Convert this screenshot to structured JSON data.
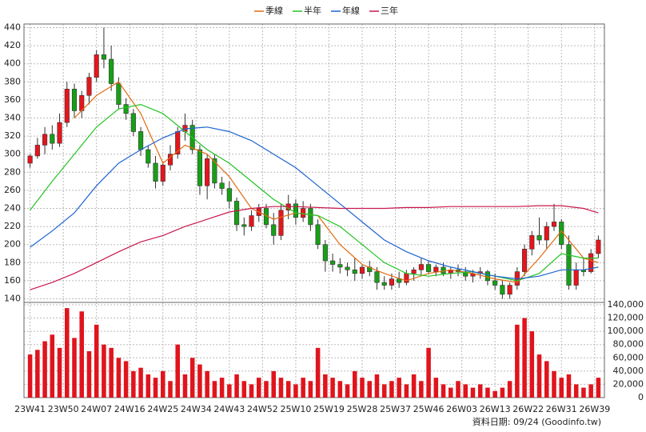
{
  "chart_data": {
    "type": "candlestick",
    "x": [
      0,
      2,
      4,
      6,
      8,
      10,
      12,
      14,
      16,
      18,
      20,
      22,
      24,
      26,
      28,
      30,
      32,
      34,
      36,
      38,
      40,
      42,
      44,
      46,
      48,
      50,
      52,
      54,
      56,
      58,
      60,
      62,
      64,
      66,
      68,
      70,
      72,
      74,
      76,
      78,
      80,
      82,
      84,
      86,
      88,
      90,
      92,
      94,
      96,
      98,
      100,
      102,
      104,
      106,
      108,
      110,
      112,
      114,
      116,
      118,
      120,
      122,
      124,
      126,
      128,
      130,
      132,
      134,
      136,
      138,
      140,
      142,
      144,
      146,
      148,
      150,
      152,
      154
    ],
    "open": [
      290,
      298,
      310,
      322,
      312,
      335,
      372,
      348,
      365,
      385,
      410,
      405,
      378,
      355,
      345,
      325,
      305,
      290,
      270,
      288,
      300,
      325,
      332,
      305,
      265,
      295,
      268,
      262,
      248,
      222,
      220,
      232,
      240,
      222,
      210,
      238,
      245,
      230,
      240,
      222,
      200,
      182,
      178,
      175,
      172,
      168,
      175,
      170,
      158,
      155,
      162,
      158,
      168,
      172,
      178,
      170,
      175,
      168,
      172,
      170,
      165,
      168,
      170,
      160,
      155,
      145,
      155,
      170,
      195,
      210,
      205,
      220,
      225,
      200,
      155,
      172,
      170,
      190
    ],
    "high": [
      300,
      318,
      330,
      332,
      345,
      380,
      378,
      370,
      390,
      415,
      440,
      420,
      385,
      362,
      350,
      330,
      310,
      298,
      292,
      310,
      330,
      345,
      338,
      310,
      300,
      300,
      275,
      270,
      252,
      230,
      238,
      245,
      245,
      235,
      245,
      255,
      250,
      248,
      245,
      228,
      205,
      190,
      185,
      180,
      185,
      178,
      182,
      175,
      165,
      168,
      170,
      172,
      175,
      185,
      182,
      178,
      180,
      175,
      178,
      175,
      172,
      175,
      172,
      168,
      160,
      158,
      175,
      200,
      215,
      230,
      225,
      245,
      228,
      210,
      180,
      185,
      195,
      210
    ],
    "low": [
      285,
      295,
      300,
      305,
      308,
      330,
      340,
      340,
      355,
      380,
      395,
      370,
      350,
      338,
      320,
      298,
      285,
      262,
      265,
      282,
      295,
      315,
      300,
      255,
      250,
      262,
      255,
      240,
      215,
      210,
      215,
      225,
      218,
      200,
      205,
      228,
      222,
      225,
      215,
      195,
      170,
      170,
      168,
      165,
      160,
      162,
      165,
      150,
      150,
      150,
      152,
      155,
      160,
      165,
      168,
      165,
      165,
      162,
      165,
      160,
      158,
      162,
      155,
      150,
      140,
      140,
      150,
      165,
      188,
      200,
      195,
      215,
      195,
      150,
      150,
      165,
      168,
      185
    ],
    "close": [
      298,
      310,
      322,
      312,
      335,
      372,
      348,
      365,
      385,
      410,
      405,
      378,
      355,
      345,
      325,
      305,
      290,
      270,
      288,
      300,
      325,
      332,
      305,
      265,
      295,
      268,
      262,
      248,
      222,
      220,
      232,
      240,
      222,
      210,
      238,
      245,
      230,
      240,
      222,
      200,
      182,
      178,
      175,
      172,
      168,
      175,
      170,
      158,
      155,
      162,
      158,
      168,
      172,
      178,
      170,
      175,
      168,
      172,
      170,
      165,
      168,
      170,
      160,
      155,
      145,
      155,
      170,
      195,
      210,
      205,
      220,
      225,
      200,
      155,
      172,
      170,
      190,
      205
    ],
    "volume": [
      65000,
      72000,
      85000,
      95000,
      75000,
      135000,
      90000,
      130000,
      70000,
      110000,
      80000,
      75000,
      60000,
      55000,
      40000,
      45000,
      35000,
      30000,
      40000,
      25000,
      80000,
      35000,
      60000,
      50000,
      40000,
      25000,
      30000,
      20000,
      35000,
      25000,
      20000,
      30000,
      25000,
      40000,
      30000,
      25000,
      20000,
      30000,
      25000,
      75000,
      35000,
      30000,
      25000,
      20000,
      40000,
      30000,
      25000,
      35000,
      20000,
      25000,
      30000,
      20000,
      35000,
      25000,
      75000,
      30000,
      20000,
      15000,
      25000,
      20000,
      15000,
      20000,
      15000,
      10000,
      15000,
      25000,
      110000,
      120000,
      100000,
      65000,
      55000,
      40000,
      30000,
      35000,
      20000,
      15000,
      20000,
      30000
    ],
    "up_color": "#e8141c",
    "down_color": "#16a016",
    "volume_color": "#e0141c",
    "lines": {
      "x": [
        0,
        6,
        12,
        18,
        24,
        30,
        36,
        42,
        48,
        54,
        60,
        66,
        72,
        78,
        84,
        90,
        96,
        102,
        108,
        114,
        120,
        126,
        132,
        138,
        144,
        150,
        154
      ],
      "series": [
        {
          "name": "季線",
          "color": "#e06c10",
          "values": [
            null,
            null,
            340,
            365,
            380,
            345,
            290,
            310,
            300,
            275,
            240,
            228,
            235,
            232,
            200,
            178,
            168,
            160,
            168,
            172,
            168,
            162,
            158,
            185,
            215,
            185,
            180
          ]
        },
        {
          "name": "半年",
          "color": "#22c422",
          "values": [
            238,
            270,
            300,
            330,
            350,
            355,
            345,
            325,
            305,
            290,
            270,
            250,
            235,
            232,
            220,
            200,
            180,
            168,
            165,
            168,
            170,
            165,
            160,
            168,
            190,
            185,
            185
          ]
        },
        {
          "name": "年線",
          "color": "#1e64d0",
          "values": [
            197,
            215,
            235,
            265,
            290,
            305,
            318,
            328,
            330,
            325,
            315,
            300,
            285,
            265,
            245,
            225,
            205,
            192,
            182,
            175,
            170,
            165,
            162,
            165,
            172,
            172,
            175
          ]
        },
        {
          "name": "三年",
          "color": "#c8184c",
          "values": [
            150,
            158,
            168,
            180,
            192,
            203,
            210,
            220,
            228,
            236,
            240,
            242,
            242,
            241,
            240,
            240,
            240,
            241,
            241,
            242,
            242,
            242,
            242,
            243,
            243,
            240,
            235
          ]
        }
      ]
    },
    "xlim": [
      -1,
      155
    ],
    "xticks": [
      {
        "value": 0,
        "label": "23W41"
      },
      {
        "value": 9,
        "label": "23W50"
      },
      {
        "value": 18,
        "label": "24W07"
      },
      {
        "value": 27,
        "label": "24W16"
      },
      {
        "value": 36,
        "label": "24W25"
      },
      {
        "value": 45,
        "label": "24W34"
      },
      {
        "value": 54,
        "label": "24W43"
      },
      {
        "value": 63,
        "label": "24W52"
      },
      {
        "value": 72,
        "label": "25W10"
      },
      {
        "value": 81,
        "label": "25W19"
      },
      {
        "value": 90,
        "label": "25W28"
      },
      {
        "value": 99,
        "label": "25W37"
      },
      {
        "value": 108,
        "label": "25W46"
      },
      {
        "value": 117,
        "label": "26W03"
      },
      {
        "value": 126,
        "label": "26W13"
      },
      {
        "value": 135,
        "label": "26W22"
      },
      {
        "value": 144,
        "label": "26W31"
      },
      {
        "value": 153,
        "label": "26W39"
      }
    ],
    "ylim": [
      136,
      444
    ],
    "yticks": [
      140,
      160,
      180,
      200,
      220,
      240,
      260,
      280,
      300,
      320,
      340,
      360,
      380,
      400,
      420,
      440
    ],
    "vlim": [
      0,
      143600
    ],
    "vticks": [
      0,
      {
        "value": 20000,
        "label": "20,000"
      },
      {
        "value": 40000,
        "label": "40,000"
      },
      {
        "value": 60000,
        "label": "60,000"
      },
      {
        "value": 80000,
        "label": "80,000"
      },
      {
        "value": 100000,
        "label": "100,000"
      },
      {
        "value": 120000,
        "label": "120,000"
      },
      {
        "value": 140000,
        "label": "140,000"
      }
    ],
    "grid": true,
    "footer": "資料日期: 09/24  (Goodinfo.tw)"
  }
}
